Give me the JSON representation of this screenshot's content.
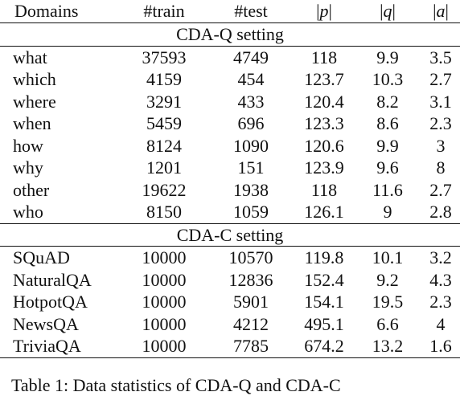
{
  "table": {
    "headers": {
      "domains": "Domains",
      "train": "#train",
      "test": "#test",
      "p_left": "|",
      "p_var": "p",
      "p_right": "|",
      "q_left": "|",
      "q_var": "q",
      "q_right": "|",
      "a_left": "|",
      "a_var": "a",
      "a_right": "|"
    },
    "sections": [
      {
        "title": "CDA-Q setting",
        "rows": [
          {
            "domain": "what",
            "train": "37593",
            "test": "4749",
            "p": "118",
            "q": "9.9",
            "a": "3.5"
          },
          {
            "domain": "which",
            "train": "4159",
            "test": "454",
            "p": "123.7",
            "q": "10.3",
            "a": "2.7"
          },
          {
            "domain": "where",
            "train": "3291",
            "test": "433",
            "p": "120.4",
            "q": "8.2",
            "a": "3.1"
          },
          {
            "domain": "when",
            "train": "5459",
            "test": "696",
            "p": "123.3",
            "q": "8.6",
            "a": "2.3"
          },
          {
            "domain": "how",
            "train": "8124",
            "test": "1090",
            "p": "120.6",
            "q": "9.9",
            "a": "3"
          },
          {
            "domain": "why",
            "train": "1201",
            "test": "151",
            "p": "123.9",
            "q": "9.6",
            "a": "8"
          },
          {
            "domain": "other",
            "train": "19622",
            "test": "1938",
            "p": "118",
            "q": "11.6",
            "a": "2.7"
          },
          {
            "domain": "who",
            "train": "8150",
            "test": "1059",
            "p": "126.1",
            "q": "9",
            "a": "2.8"
          }
        ]
      },
      {
        "title": "CDA-C setting",
        "rows": [
          {
            "domain": "SQuAD",
            "train": "10000",
            "test": "10570",
            "p": "119.8",
            "q": "10.1",
            "a": "3.2"
          },
          {
            "domain": "NaturalQA",
            "train": "10000",
            "test": "12836",
            "p": "152.4",
            "q": "9.2",
            "a": "4.3"
          },
          {
            "domain": "HotpotQA",
            "train": "10000",
            "test": "5901",
            "p": "154.1",
            "q": "19.5",
            "a": "2.3"
          },
          {
            "domain": "NewsQA",
            "train": "10000",
            "test": "4212",
            "p": "495.1",
            "q": "6.6",
            "a": "4"
          },
          {
            "domain": "TriviaQA",
            "train": "10000",
            "test": "7785",
            "p": "674.2",
            "q": "13.2",
            "a": "1.6"
          }
        ]
      }
    ]
  },
  "caption": "Table 1: Data statistics of CDA-Q and CDA-C"
}
